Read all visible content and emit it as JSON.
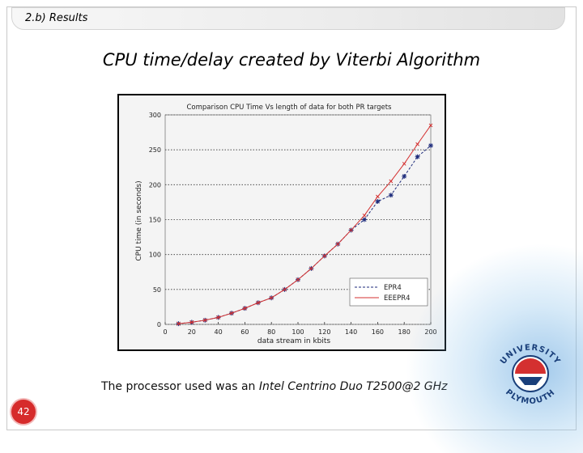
{
  "header": {
    "section": "2.b) Results"
  },
  "slide": {
    "title": "CPU time/delay created by Viterbi Algorithm"
  },
  "caption": {
    "prefix": "The processor used was an ",
    "processor": "Intel Centrino Duo T2500@2 GHz"
  },
  "footer": {
    "page_number": "42"
  },
  "logo": {
    "top_text": "UNIVERSITY",
    "bottom_text": "PLYMOUTH",
    "icon": "university-crest-icon"
  },
  "colors": {
    "series_epr4": "#1c2a7a",
    "series_eeepr4": "#d43030",
    "page_badge": "#d62b2b"
  },
  "chart_data": {
    "type": "line",
    "title": "Comparison CPU Time Vs length of data for both PR targets",
    "xlabel": "data stream in kbits",
    "ylabel": "CPU time (in seconds)",
    "xlim": [
      0,
      200
    ],
    "ylim": [
      0,
      300
    ],
    "xticks": [
      "0",
      "20",
      "40",
      "60",
      "80",
      "100",
      "120",
      "140",
      "160",
      "180",
      "200"
    ],
    "yticks": [
      "0",
      "50",
      "100",
      "150",
      "200",
      "250",
      "300"
    ],
    "grid": "horizontal dotted",
    "legend_position": "bottom-right",
    "series": [
      {
        "name": "EPR4",
        "marker": "star",
        "x": [
          10,
          20,
          30,
          40,
          50,
          60,
          70,
          80,
          90,
          100,
          110,
          120,
          130,
          140,
          150,
          160,
          170,
          180,
          190,
          200
        ],
        "y": [
          1,
          3,
          6,
          10,
          16,
          23,
          31,
          38,
          50,
          64,
          80,
          98,
          115,
          135,
          150,
          176,
          185,
          212,
          240,
          256
        ]
      },
      {
        "name": "EEEPR4",
        "marker": "x",
        "x": [
          10,
          20,
          30,
          40,
          50,
          60,
          70,
          80,
          90,
          100,
          110,
          120,
          130,
          140,
          150,
          160,
          170,
          180,
          190,
          200
        ],
        "y": [
          1,
          3,
          6,
          10,
          16,
          23,
          31,
          38,
          50,
          64,
          80,
          98,
          115,
          135,
          156,
          183,
          205,
          230,
          258,
          285
        ]
      }
    ]
  }
}
